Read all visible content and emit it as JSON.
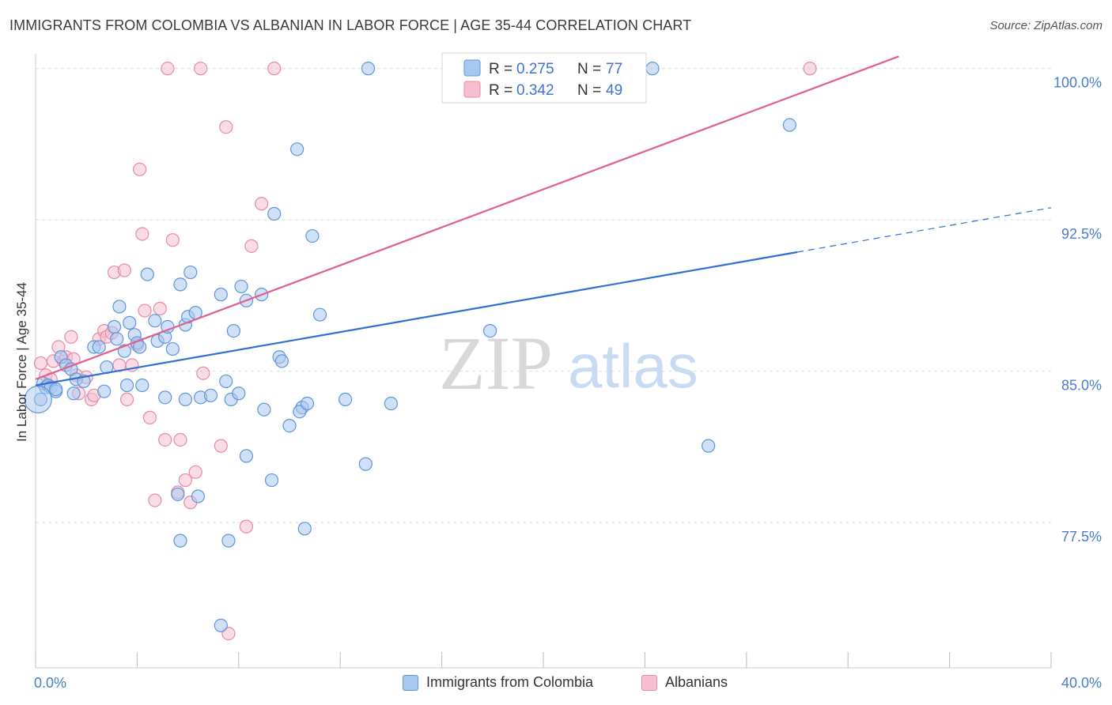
{
  "header": {
    "title": "IMMIGRANTS FROM COLOMBIA VS ALBANIAN IN LABOR FORCE | AGE 35-44 CORRELATION CHART",
    "source": "Source: ZipAtlas.com"
  },
  "watermark": {
    "zip": "ZIP",
    "atlas": "atlas"
  },
  "colors": {
    "blue_fill": "#a9c8f0",
    "blue_stroke": "#5f95d8",
    "blue_line": "#2f6fcf",
    "pink_fill": "#f6bfd0",
    "pink_stroke": "#e68aa8",
    "pink_line": "#e0608c",
    "axis_text": "#4a7cc9",
    "grid": "#dddddd"
  },
  "legend": {
    "r_label": "R =",
    "n_label": "N =",
    "entries": [
      {
        "r": "0.275",
        "n": "77"
      },
      {
        "r": "0.342",
        "n": "49"
      }
    ]
  },
  "chart_data": {
    "type": "scatter",
    "title": "IMMIGRANTS FROM COLOMBIA VS ALBANIAN IN LABOR FORCE | AGE 35-44 CORRELATION CHART",
    "xlabel": "",
    "ylabel": "In Labor Force | Age 35-44",
    "xlim": [
      0,
      40
    ],
    "ylim": [
      70.3,
      100.3
    ],
    "x_tick_labels": [
      "0.0%",
      "40.0%"
    ],
    "y_ticks": [
      77.5,
      85.0,
      92.5,
      100.0
    ],
    "y_tick_labels": [
      "77.5%",
      "85.0%",
      "92.5%",
      "100.0%"
    ],
    "grid": "horizontal dashed",
    "legend_position": "top-center",
    "series": [
      {
        "name": "Immigrants from Colombia",
        "r": 0.275,
        "n": 77,
        "trend": {
          "x0": 0.0,
          "y0": 84.3,
          "x1": 30.0,
          "y1": 90.9,
          "dash_to_x": 40.0,
          "dash_to_y": 93.1
        },
        "points": [
          [
            0.2,
            83.6
          ],
          [
            0.3,
            84.4
          ],
          [
            0.4,
            84.2
          ],
          [
            0.5,
            84.3
          ],
          [
            0.6,
            84.2
          ],
          [
            0.8,
            84.0
          ],
          [
            0.8,
            84.1
          ],
          [
            1.0,
            85.7
          ],
          [
            1.2,
            85.3
          ],
          [
            1.4,
            85.1
          ],
          [
            1.5,
            83.9
          ],
          [
            1.6,
            84.6
          ],
          [
            1.9,
            84.5
          ],
          [
            2.3,
            86.2
          ],
          [
            2.5,
            86.2
          ],
          [
            2.8,
            85.2
          ],
          [
            3.1,
            87.2
          ],
          [
            3.2,
            86.6
          ],
          [
            3.3,
            88.2
          ],
          [
            3.5,
            86.0
          ],
          [
            3.6,
            84.3
          ],
          [
            3.7,
            87.4
          ],
          [
            3.9,
            86.8
          ],
          [
            4.0,
            86.4
          ],
          [
            4.1,
            86.2
          ],
          [
            4.2,
            84.3
          ],
          [
            4.4,
            89.8
          ],
          [
            4.7,
            87.5
          ],
          [
            4.8,
            86.5
          ],
          [
            5.1,
            86.7
          ],
          [
            5.1,
            83.7
          ],
          [
            5.2,
            87.2
          ],
          [
            5.4,
            86.1
          ],
          [
            5.7,
            89.3
          ],
          [
            5.9,
            87.3
          ],
          [
            6.0,
            87.7
          ],
          [
            6.1,
            89.9
          ],
          [
            6.3,
            87.9
          ],
          [
            6.5,
            83.7
          ],
          [
            6.9,
            83.8
          ],
          [
            7.3,
            88.8
          ],
          [
            7.5,
            84.5
          ],
          [
            7.7,
            83.6
          ],
          [
            7.8,
            87.0
          ],
          [
            8.0,
            83.9
          ],
          [
            8.1,
            89.2
          ],
          [
            8.3,
            88.5
          ],
          [
            8.3,
            80.8
          ],
          [
            8.9,
            88.8
          ],
          [
            9.0,
            83.1
          ],
          [
            9.4,
            92.8
          ],
          [
            9.6,
            85.7
          ],
          [
            10.0,
            82.3
          ],
          [
            10.3,
            96.0
          ],
          [
            10.5,
            83.2
          ],
          [
            10.9,
            91.7
          ],
          [
            11.2,
            87.8
          ],
          [
            12.2,
            83.6
          ],
          [
            13.0,
            80.4
          ],
          [
            13.1,
            100.0
          ],
          [
            14.0,
            83.4
          ],
          [
            17.9,
            87.0
          ],
          [
            24.3,
            100.0
          ],
          [
            26.5,
            81.3
          ],
          [
            29.7,
            97.2
          ],
          [
            9.3,
            79.6
          ],
          [
            10.4,
            83.0
          ],
          [
            10.6,
            77.2
          ],
          [
            7.6,
            76.6
          ],
          [
            7.3,
            72.4
          ],
          [
            5.6,
            78.9
          ],
          [
            5.7,
            76.6
          ],
          [
            6.4,
            78.8
          ],
          [
            9.7,
            85.5
          ],
          [
            10.7,
            83.4
          ],
          [
            2.7,
            84.0
          ],
          [
            5.9,
            83.6
          ]
        ]
      },
      {
        "name": "Albanians",
        "r": 0.342,
        "n": 49,
        "trend": {
          "x0": 0.0,
          "y0": 84.6,
          "x1": 34.0,
          "y1": 100.6
        },
        "points": [
          [
            0.2,
            85.4
          ],
          [
            0.4,
            84.8
          ],
          [
            0.5,
            84.3
          ],
          [
            0.7,
            85.5
          ],
          [
            0.9,
            86.2
          ],
          [
            1.1,
            85.5
          ],
          [
            1.2,
            85.7
          ],
          [
            1.4,
            86.7
          ],
          [
            1.5,
            85.6
          ],
          [
            1.7,
            83.9
          ],
          [
            2.0,
            84.7
          ],
          [
            2.2,
            83.6
          ],
          [
            2.5,
            86.6
          ],
          [
            2.7,
            87.0
          ],
          [
            2.8,
            86.7
          ],
          [
            3.1,
            89.9
          ],
          [
            3.3,
            85.3
          ],
          [
            3.5,
            90.0
          ],
          [
            3.6,
            83.6
          ],
          [
            3.8,
            85.3
          ],
          [
            4.0,
            86.3
          ],
          [
            4.1,
            95.0
          ],
          [
            4.2,
            91.8
          ],
          [
            4.3,
            88.0
          ],
          [
            4.5,
            82.7
          ],
          [
            4.7,
            78.6
          ],
          [
            4.9,
            88.1
          ],
          [
            5.1,
            81.6
          ],
          [
            5.4,
            91.5
          ],
          [
            5.6,
            79.0
          ],
          [
            5.7,
            81.6
          ],
          [
            5.9,
            79.6
          ],
          [
            6.1,
            78.5
          ],
          [
            6.3,
            80.0
          ],
          [
            6.5,
            100.0
          ],
          [
            7.3,
            81.3
          ],
          [
            7.5,
            97.1
          ],
          [
            7.6,
            72.0
          ],
          [
            8.3,
            77.3
          ],
          [
            8.5,
            91.2
          ],
          [
            8.9,
            93.3
          ],
          [
            9.4,
            100.0
          ],
          [
            5.2,
            100.0
          ],
          [
            30.5,
            100.0
          ],
          [
            1.6,
            84.8
          ],
          [
            2.3,
            83.8
          ],
          [
            3.0,
            86.9
          ],
          [
            6.6,
            84.9
          ],
          [
            0.6,
            84.6
          ]
        ]
      }
    ]
  },
  "bottom_legend": {
    "items": [
      "Immigrants from Colombia",
      "Albanians"
    ]
  }
}
